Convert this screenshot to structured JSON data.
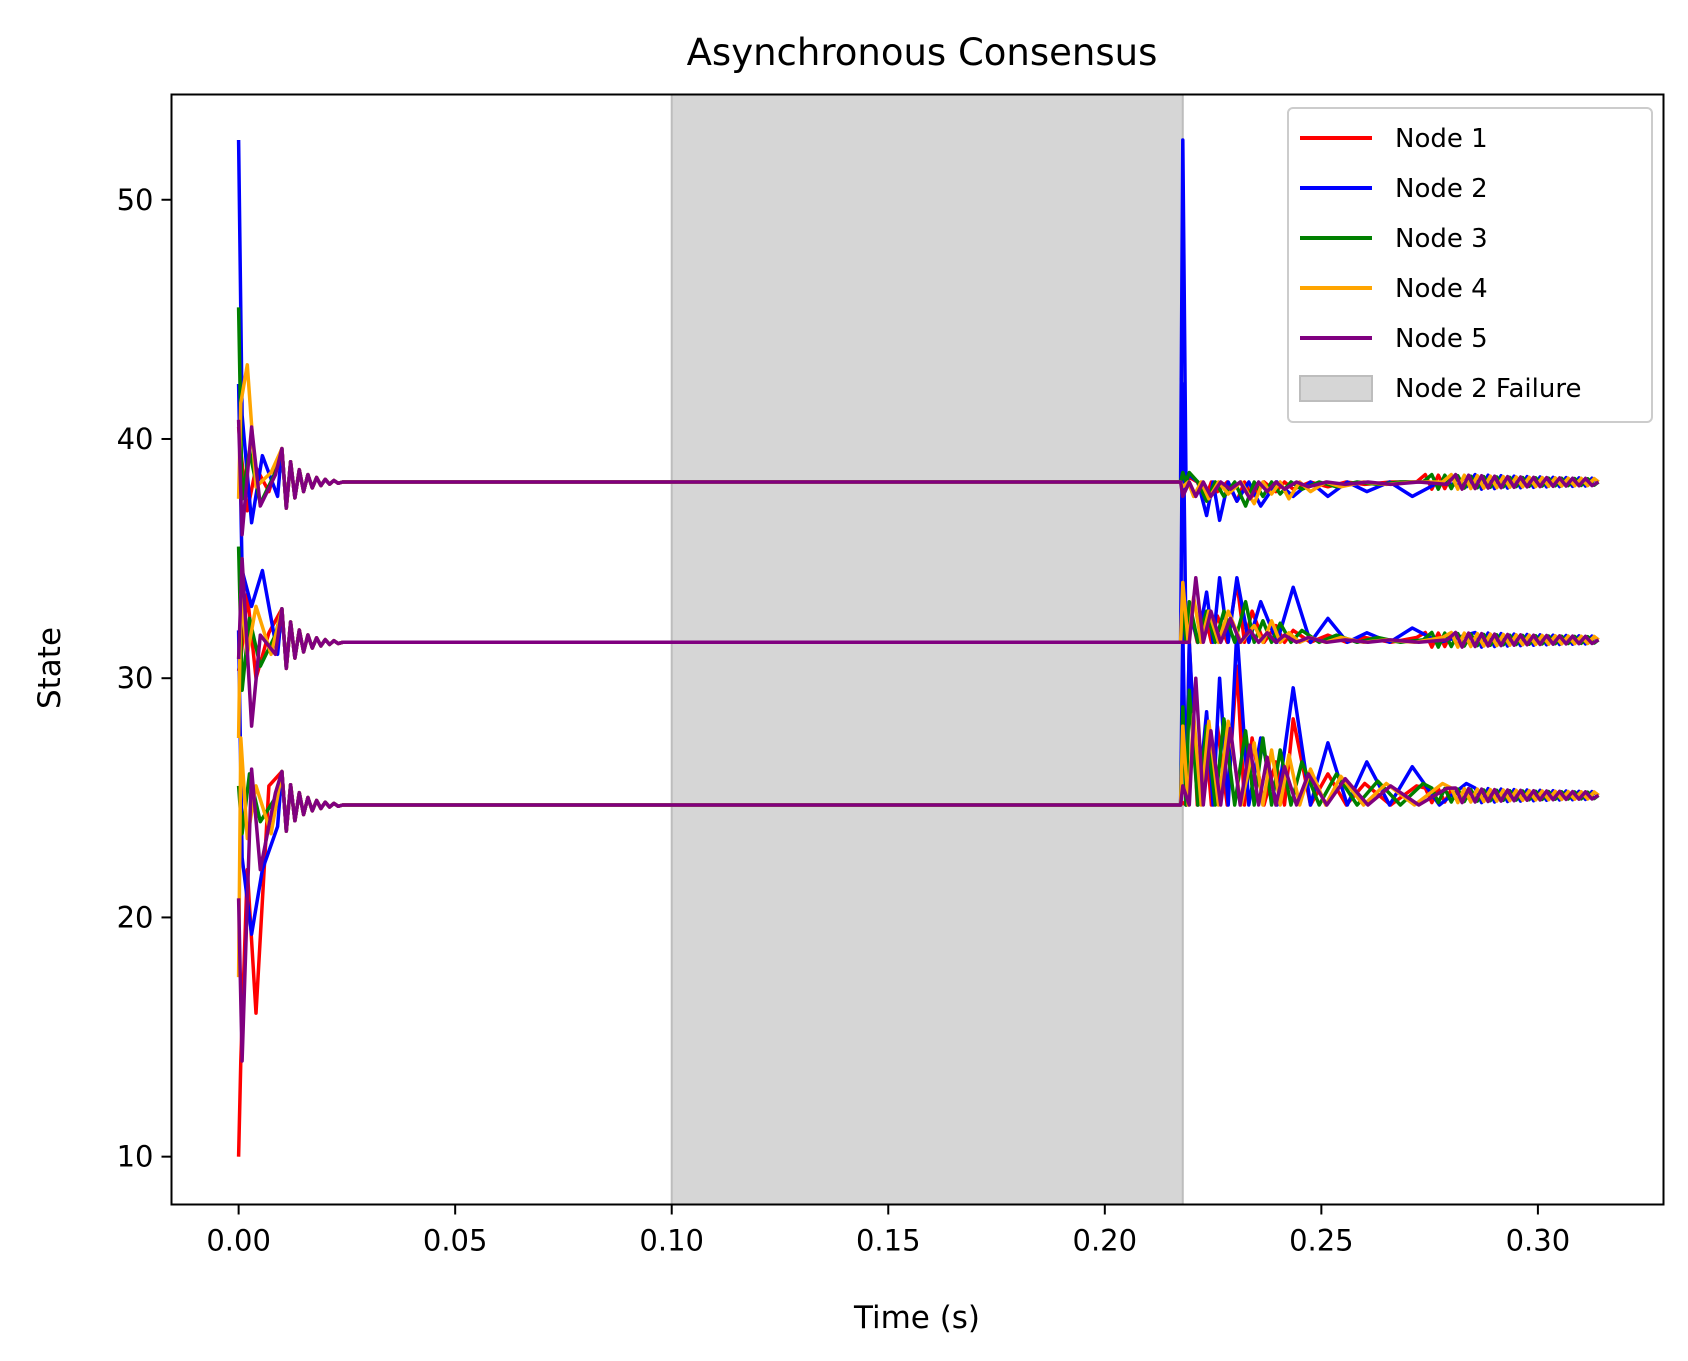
{
  "chart_data": {
    "type": "line",
    "title": "Asynchronous Consensus",
    "xlabel": "Time (s)",
    "ylabel": "State",
    "xlim": [
      -0.0155,
      0.329
    ],
    "ylim": [
      8,
      54.4
    ],
    "xticks": [
      0.0,
      0.05,
      0.1,
      0.15,
      0.2,
      0.25,
      0.3
    ],
    "xtick_labels": [
      "0.00",
      "0.05",
      "0.10",
      "0.15",
      "0.20",
      "0.25",
      "0.30"
    ],
    "yticks": [
      10,
      20,
      30,
      40,
      50
    ],
    "ytick_labels": [
      "10",
      "20",
      "30",
      "40",
      "50"
    ],
    "grid": false,
    "legend_position": "top-right",
    "x_end": 0.314,
    "shaded_region": {
      "name": "Node 2 Failure",
      "x_start": 0.1,
      "x_end": 0.218,
      "color": "#d6d6d6"
    },
    "consensus_levels": [
      38.2,
      31.5,
      24.7
    ],
    "recovery_levels": [
      38.2,
      31.6,
      25.1
    ],
    "series": [
      {
        "name": "Node 1",
        "color": "#ff0000",
        "initial_values": [
          40.5,
          30.3,
          10.0
        ],
        "initial_swings": [
          [
            0.0005,
            39.5,
            30.8,
            14.0
          ],
          [
            0.002,
            37.0,
            33.5,
            22.0
          ],
          [
            0.004,
            38.8,
            30.0,
            16.0
          ],
          [
            0.007,
            37.8,
            31.9,
            25.5
          ]
        ],
        "restart_values": [
          38.6,
          32.0,
          24.8
        ],
        "restart_spikes": [
          [
            0.2195,
            38.4,
            33.0,
            31.5
          ],
          [
            0.2232,
            37.5,
            32.6,
            27.8
          ],
          [
            0.226,
            37.8,
            32.6,
            28.0
          ],
          [
            0.2305,
            37.4,
            34.0,
            30.5
          ],
          [
            0.234,
            37.6,
            32.8,
            27.5
          ],
          [
            0.2395,
            37.8,
            32.2,
            26.5
          ],
          [
            0.2435,
            37.9,
            32.0,
            28.3
          ],
          [
            0.2515,
            38.0,
            31.8,
            26.0
          ],
          [
            0.26,
            38.1,
            31.7,
            25.6
          ],
          [
            0.272,
            38.2,
            31.7,
            25.5
          ]
        ]
      },
      {
        "name": "Node 2",
        "color": "#0000ff",
        "initial_values": [
          52.5,
          42.3,
          32.0
        ],
        "initial_swings": [
          [
            0.0008,
            41.0,
            34.5,
            22.5
          ],
          [
            0.003,
            36.5,
            33.0,
            19.3
          ],
          [
            0.0055,
            39.3,
            34.5,
            22.0
          ],
          [
            0.009,
            37.6,
            31.0,
            23.8
          ]
        ],
        "restart_values": [
          52.5,
          42.3,
          32.0
        ],
        "restart_spikes": [
          [
            0.2195,
            38.5,
            32.9,
            31.5
          ],
          [
            0.2235,
            36.8,
            33.6,
            28.6
          ],
          [
            0.2265,
            36.6,
            34.2,
            30.0
          ],
          [
            0.2305,
            37.4,
            34.2,
            32.0
          ],
          [
            0.236,
            37.2,
            33.2,
            27.5
          ],
          [
            0.2435,
            37.6,
            33.8,
            29.6
          ],
          [
            0.2515,
            37.6,
            32.5,
            27.3
          ],
          [
            0.2605,
            37.8,
            31.9,
            26.5
          ],
          [
            0.271,
            37.6,
            32.1,
            26.3
          ],
          [
            0.2835,
            38.0,
            31.8,
            25.6
          ]
        ]
      },
      {
        "name": "Node 3",
        "color": "#008000",
        "initial_values": [
          45.5,
          35.5,
          25.5
        ],
        "initial_swings": [
          [
            0.0008,
            37.5,
            29.5,
            23.5
          ],
          [
            0.0025,
            39.5,
            32.5,
            26.0
          ],
          [
            0.005,
            37.3,
            30.5,
            24.0
          ],
          [
            0.0085,
            38.6,
            31.8,
            25.0
          ]
        ],
        "restart_values": [
          38.6,
          33.0,
          28.8
        ],
        "restart_spikes": [
          [
            0.2195,
            38.6,
            33.2,
            29.5
          ],
          [
            0.2235,
            37.4,
            32.8,
            28.0
          ],
          [
            0.2275,
            37.6,
            32.8,
            28.3
          ],
          [
            0.2325,
            37.2,
            33.2,
            27.8
          ],
          [
            0.2365,
            37.6,
            32.4,
            27.5
          ],
          [
            0.2405,
            37.7,
            32.3,
            27.0
          ],
          [
            0.2455,
            37.9,
            32.0,
            26.5
          ],
          [
            0.2535,
            38.0,
            31.8,
            26.0
          ],
          [
            0.263,
            38.1,
            31.7,
            25.7
          ],
          [
            0.2735,
            38.2,
            31.6,
            25.6
          ]
        ]
      },
      {
        "name": "Node 4",
        "color": "#ffa500",
        "initial_values": [
          37.5,
          27.5,
          17.5
        ],
        "initial_swings": [
          [
            0.0005,
            41.5,
            33.5,
            27.5
          ],
          [
            0.002,
            43.1,
            31.0,
            23.3
          ],
          [
            0.004,
            38.0,
            33.0,
            25.5
          ],
          [
            0.0075,
            38.6,
            31.0,
            23.5
          ]
        ],
        "restart_values": [
          38.0,
          34.0,
          28.0
        ],
        "restart_spikes": [
          [
            0.2205,
            37.6,
            33.4,
            28.5
          ],
          [
            0.224,
            37.5,
            32.8,
            28.2
          ],
          [
            0.2285,
            37.7,
            32.8,
            28.2
          ],
          [
            0.2345,
            37.3,
            32.2,
            27.3
          ],
          [
            0.2385,
            37.7,
            32.4,
            27.0
          ],
          [
            0.2425,
            37.5,
            31.9,
            26.8
          ],
          [
            0.2475,
            37.8,
            31.7,
            26.2
          ],
          [
            0.2545,
            38.0,
            31.7,
            25.9
          ],
          [
            0.265,
            38.1,
            31.6,
            25.6
          ],
          [
            0.278,
            38.2,
            31.7,
            25.6
          ]
        ]
      },
      {
        "name": "Node 5",
        "color": "#800080",
        "initial_values": [
          40.8,
          30.8,
          20.8
        ],
        "initial_swings": [
          [
            0.0008,
            36.0,
            35.0,
            14.0
          ],
          [
            0.003,
            40.5,
            28.0,
            26.2
          ],
          [
            0.005,
            37.2,
            31.8,
            22.0
          ],
          [
            0.0085,
            38.5,
            31.0,
            25.2
          ]
        ],
        "restart_values": [
          37.6,
          31.5,
          25.5
        ],
        "restart_spikes": [
          [
            0.221,
            37.6,
            34.2,
            30.0
          ],
          [
            0.2245,
            37.6,
            32.8,
            27.8
          ],
          [
            0.229,
            37.9,
            32.5,
            27.9
          ],
          [
            0.2335,
            37.5,
            32.0,
            27.2
          ],
          [
            0.2375,
            37.8,
            31.9,
            26.7
          ],
          [
            0.2415,
            37.9,
            31.8,
            26.3
          ],
          [
            0.247,
            38.0,
            31.7,
            26.0
          ],
          [
            0.2555,
            38.1,
            31.6,
            25.8
          ],
          [
            0.266,
            38.1,
            31.6,
            25.5
          ],
          [
            0.279,
            38.1,
            31.6,
            25.4
          ]
        ]
      }
    ]
  }
}
